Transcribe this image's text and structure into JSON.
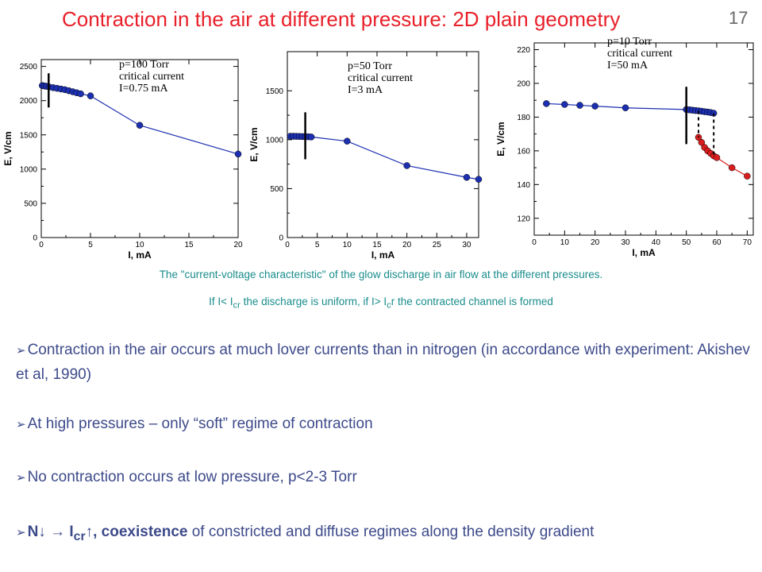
{
  "slide": {
    "title": "Contraction in the air at different pressure: 2D plain geometry",
    "number": "17"
  },
  "captions": {
    "line1": "The \"current-voltage characteristic\" of the glow discharge in air flow at the different pressures.",
    "line2_a": "If I< I",
    "line2_sub1": "cr",
    "line2_b": " the discharge is uniform, if I> I",
    "line2_sub2": "c",
    "line2_c": "r the contracted channel is formed"
  },
  "bullets": {
    "b1": "Contraction in the air occurs at much lover currents than in nitrogen (in accordance with experiment: Akishev et al, 1990)",
    "b2": "At high pressures – only “soft” regime of contraction",
    "b3": "No contraction occurs at low pressure, p<2-3 Torr",
    "b4_bold1": "N↓ → I",
    "b4_sub": "cr",
    "b4_bold2": "↑, coexistence",
    "b4_rest": " of constricted and diffuse regimes along the density gradient",
    "marker": "➢"
  },
  "colors": {
    "title": "#e8202a",
    "caption": "#1a8c8c",
    "bullet_text": "#3d4a8a",
    "series_blue": "#1c2fb0",
    "series_red": "#d81e1e"
  },
  "chart_data": [
    {
      "type": "line",
      "xlabel": "I, mA",
      "ylabel": "E, V/cm",
      "xlim": [
        0,
        20
      ],
      "ylim": [
        0,
        2600
      ],
      "xticks": [
        0,
        5,
        10,
        15,
        20
      ],
      "yticks": [
        0,
        500,
        1000,
        1500,
        2000,
        2500
      ],
      "annotation": [
        "p=100 Torr",
        "critical  current",
        "I=0.75 mA"
      ],
      "critical_current": 0.75,
      "critical_bar": [
        1900,
        2400
      ],
      "series": [
        {
          "color": "blue",
          "x": [
            0.1,
            0.3,
            0.5,
            0.8,
            1.2,
            1.6,
            2.0,
            2.4,
            2.8,
            3.2,
            3.6,
            4.0,
            5.0,
            10.0,
            20.0
          ],
          "y": [
            2220,
            2215,
            2210,
            2200,
            2190,
            2180,
            2170,
            2160,
            2145,
            2130,
            2115,
            2100,
            2070,
            1640,
            1220
          ]
        }
      ]
    },
    {
      "type": "line",
      "xlabel": "I, mA",
      "ylabel": "E, V/cm",
      "xlim": [
        0,
        32
      ],
      "ylim": [
        0,
        1900
      ],
      "xticks": [
        0,
        5,
        10,
        15,
        20,
        25,
        30
      ],
      "yticks": [
        0,
        500,
        1000,
        1500
      ],
      "annotation": [
        "p=50 Torr",
        "critical  current",
        "I=3 mA"
      ],
      "critical_current": 3,
      "critical_bar": [
        800,
        1280
      ],
      "series": [
        {
          "color": "blue",
          "x": [
            0.5,
            1.0,
            1.5,
            2.0,
            2.5,
            3.0,
            3.5,
            4.0,
            10.0,
            20.0,
            30.0,
            32.0
          ],
          "y": [
            1035,
            1035,
            1034,
            1033,
            1032,
            1031,
            1030,
            1028,
            985,
            735,
            615,
            595
          ]
        }
      ]
    },
    {
      "type": "line",
      "xlabel": "I, mA",
      "ylabel": "E, V/cm",
      "xlim": [
        0,
        72
      ],
      "ylim": [
        110,
        224
      ],
      "xticks": [
        0,
        10,
        20,
        30,
        40,
        50,
        60,
        70
      ],
      "yticks": [
        120,
        140,
        160,
        180,
        200,
        220
      ],
      "annotation": [
        "p=10 Torr",
        "critical  current",
        "I=50 mA"
      ],
      "critical_current": 50,
      "critical_bar": [
        164,
        198
      ],
      "series": [
        {
          "color": "blue",
          "x": [
            4,
            10,
            15,
            20,
            30,
            50,
            51,
            52,
            53,
            54,
            55,
            56,
            57,
            58,
            59
          ],
          "y": [
            188,
            187.5,
            187,
            186.5,
            185.5,
            184.5,
            184.3,
            184.1,
            183.9,
            183.7,
            183.5,
            183.2,
            183,
            182.7,
            182.3
          ]
        },
        {
          "color": "red",
          "x": [
            54,
            55,
            56,
            57,
            58,
            59,
            60,
            65,
            70
          ],
          "y": [
            168,
            165,
            162,
            160,
            158.5,
            157,
            156,
            150,
            145
          ]
        }
      ],
      "dashed_drops": [
        {
          "x": 54,
          "y1": 183.7,
          "y2": 168
        },
        {
          "x": 59,
          "y1": 182.3,
          "y2": 157
        }
      ]
    }
  ]
}
